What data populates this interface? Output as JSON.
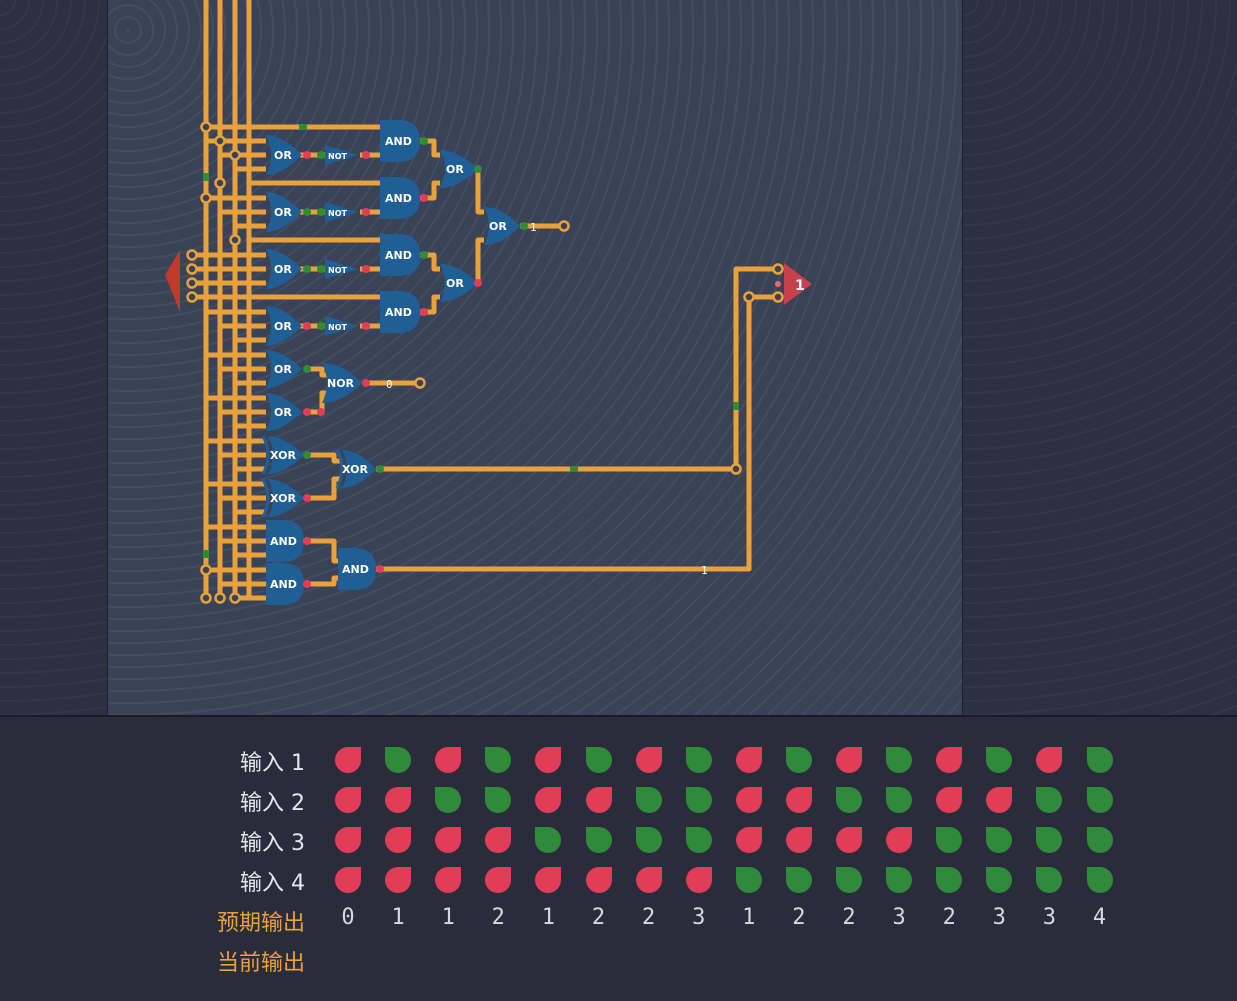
{
  "circuit": {
    "gates": {
      "or1": "OR",
      "or2": "OR",
      "or3": "OR",
      "or4": "OR",
      "or5": "OR",
      "or6": "OR",
      "not1": "NOT",
      "not2": "NOT",
      "not3": "NOT",
      "not4": "NOT",
      "and1": "AND",
      "and2": "AND",
      "and3": "AND",
      "and4": "AND",
      "orA": "OR",
      "orB": "OR",
      "orC": "OR",
      "nor": "NOR",
      "xor1": "XOR",
      "xor2": "XOR",
      "xorC": "XOR",
      "and5": "AND",
      "and6": "AND",
      "andC": "AND"
    },
    "output_value": "1",
    "or_result_label": "1",
    "nor_result_label": "0",
    "and_wire_label": "1"
  },
  "truth_table": {
    "input_labels": [
      "输入 1",
      "输入 2",
      "输入 3",
      "输入 4"
    ],
    "expected_label": "预期输出",
    "current_label": "当前输出",
    "inputs": [
      [
        0,
        1,
        0,
        1,
        0,
        1,
        0,
        1,
        0,
        1,
        0,
        1,
        0,
        1,
        0,
        1
      ],
      [
        0,
        0,
        1,
        1,
        0,
        0,
        1,
        1,
        0,
        0,
        1,
        1,
        0,
        0,
        1,
        1
      ],
      [
        0,
        0,
        0,
        0,
        1,
        1,
        1,
        1,
        0,
        0,
        0,
        0,
        1,
        1,
        1,
        1
      ],
      [
        0,
        0,
        0,
        0,
        0,
        0,
        0,
        0,
        1,
        1,
        1,
        1,
        1,
        1,
        1,
        1
      ]
    ],
    "expected": [
      "0",
      "1",
      "1",
      "2",
      "1",
      "2",
      "2",
      "3",
      "1",
      "2",
      "2",
      "3",
      "2",
      "3",
      "3",
      "4"
    ],
    "colors": {
      "on": "#2f8a3a",
      "off": "#e23d58",
      "wire": "#e9a23b",
      "gate": "#1f5f96"
    }
  }
}
